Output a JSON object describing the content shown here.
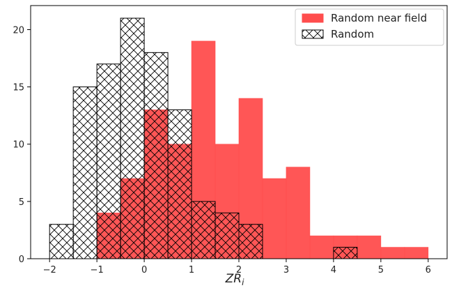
{
  "chart_data": {
    "type": "bar",
    "xlabel": "ZR",
    "xlabel_subscript": "i",
    "ylabel": "",
    "xlim": [
      -2.4,
      6.4
    ],
    "ylim": [
      0,
      22.1
    ],
    "bin_width": 0.5,
    "xticks": [
      -2,
      -1,
      0,
      1,
      2,
      3,
      4,
      5,
      6
    ],
    "yticks": [
      0,
      5,
      10,
      15,
      20
    ],
    "legend_position": "top-right",
    "grid": false,
    "series": [
      {
        "name": "Random near field",
        "style": "filled",
        "color": "#ff4d4d",
        "bins": [
          {
            "start": -1.0,
            "value": 4
          },
          {
            "start": -0.5,
            "value": 7
          },
          {
            "start": 0.0,
            "value": 13
          },
          {
            "start": 0.5,
            "value": 10
          },
          {
            "start": 1.0,
            "value": 19
          },
          {
            "start": 1.5,
            "value": 10
          },
          {
            "start": 2.0,
            "value": 14
          },
          {
            "start": 2.5,
            "value": 7
          },
          {
            "start": 3.0,
            "value": 8
          },
          {
            "start": 3.5,
            "value": 2
          },
          {
            "start": 4.0,
            "value": 2
          },
          {
            "start": 4.5,
            "value": 2
          },
          {
            "start": 5.0,
            "value": 1
          },
          {
            "start": 5.5,
            "value": 1
          }
        ]
      },
      {
        "name": "Random",
        "style": "hatched",
        "color": "#000000",
        "bins": [
          {
            "start": -2.0,
            "value": 3
          },
          {
            "start": -1.5,
            "value": 15
          },
          {
            "start": -1.0,
            "value": 17
          },
          {
            "start": -0.5,
            "value": 21
          },
          {
            "start": 0.0,
            "value": 18
          },
          {
            "start": 0.5,
            "value": 13
          },
          {
            "start": 1.0,
            "value": 5
          },
          {
            "start": 1.5,
            "value": 4
          },
          {
            "start": 2.0,
            "value": 3
          },
          {
            "start": 4.0,
            "value": 1
          }
        ]
      }
    ]
  }
}
